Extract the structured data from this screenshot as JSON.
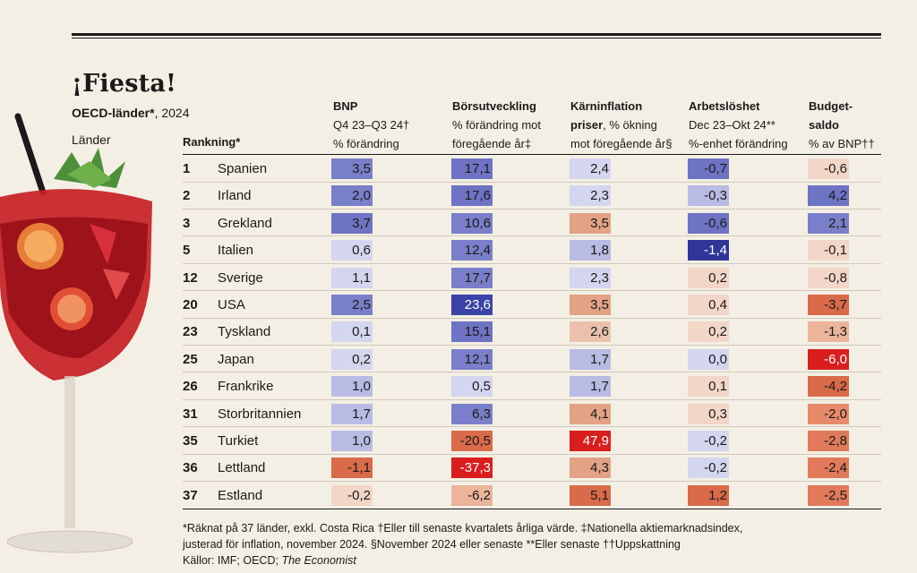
{
  "title": "¡Fiesta!",
  "subtitle_bold": "OECD-länder*",
  "subtitle_rest": ", 2024",
  "countries_label": "Länder",
  "rank_label": "Rankning*",
  "columns": [
    {
      "l1": "BNP",
      "l1_bold": true,
      "l2": "Q4 23–Q3 24†",
      "l2_bold": false,
      "l3": "% förändring"
    },
    {
      "l1": "Börsutveckling",
      "l1_bold": true,
      "l2": "% förändring mot",
      "l2_bold": false,
      "l3": "föregående år‡"
    },
    {
      "l1": "Kärninflation",
      "l1_bold": true,
      "l2": "priser",
      "l2_bold": true,
      "l2b": ", % ökning",
      "l3": "mot föregående år§"
    },
    {
      "l1": "Arbetslöshet",
      "l1_bold": true,
      "l2": "Dec 23–Okt 24**",
      "l2_bold": false,
      "l3": "%-enhet förändring"
    },
    {
      "l1": "Budget-",
      "l1_bold": true,
      "l2": "saldo",
      "l2_bold": true,
      "l3": "% av BNP††"
    }
  ],
  "chart_data": {
    "type": "table",
    "columns": [
      "BNP",
      "Börsutveckling",
      "Kärninflation priser",
      "Arbetslöshet",
      "Budgetsaldo"
    ],
    "rows": [
      {
        "rank": "1",
        "country": "Spanien",
        "values": [
          "3,5",
          "17,1",
          "2,4",
          "-0,7",
          "-0,6"
        ]
      },
      {
        "rank": "2",
        "country": "Irland",
        "values": [
          "2,0",
          "17,6",
          "2,3",
          "-0,3",
          "4,2"
        ]
      },
      {
        "rank": "3",
        "country": "Grekland",
        "values": [
          "3,7",
          "10,6",
          "3,5",
          "-0,6",
          "2,1"
        ]
      },
      {
        "rank": "5",
        "country": "Italien",
        "values": [
          "0,6",
          "12,4",
          "1,8",
          "-1,4",
          "-0,1"
        ]
      },
      {
        "rank": "12",
        "country": "Sverige",
        "values": [
          "1,1",
          "17,7",
          "2,3",
          "0,2",
          "-0,8"
        ]
      },
      {
        "rank": "20",
        "country": "USA",
        "values": [
          "2,5",
          "23,6",
          "3,5",
          "0,4",
          "-3,7"
        ]
      },
      {
        "rank": "23",
        "country": "Tyskland",
        "values": [
          "0,1",
          "15,1",
          "2,6",
          "0,2",
          "-1,3"
        ]
      },
      {
        "rank": "25",
        "country": "Japan",
        "values": [
          "0,2",
          "12,1",
          "1,7",
          "0,0",
          "-6,0"
        ]
      },
      {
        "rank": "26",
        "country": "Frankrike",
        "values": [
          "1,0",
          "0,5",
          "1,7",
          "0,1",
          "-4,2"
        ]
      },
      {
        "rank": "31",
        "country": "Storbritannien",
        "values": [
          "1,7",
          "6,3",
          "4,1",
          "0,3",
          "-2,0"
        ]
      },
      {
        "rank": "35",
        "country": "Turkiet",
        "values": [
          "1,0",
          "-20,5",
          "47,9",
          "-0,2",
          "-2,8"
        ]
      },
      {
        "rank": "36",
        "country": "Lettland",
        "values": [
          "-1,1",
          "-37,3",
          "4,3",
          "-0,2",
          "-2,4"
        ]
      },
      {
        "rank": "37",
        "country": "Estland",
        "values": [
          "-0,2",
          "-6,2",
          "5,1",
          "1,2",
          "-2,5"
        ]
      }
    ],
    "colors": [
      [
        "#7a7fc9",
        "#6f73c4",
        "#d4d5ee",
        "#6f73c4",
        "#f2d6c8"
      ],
      [
        "#7a7fc9",
        "#6f73c4",
        "#d4d5ee",
        "#b8bbe3",
        "#6f73c4"
      ],
      [
        "#6f73c4",
        "#7a7fc9",
        "#e3a285",
        "#6f73c4",
        "#7a7fc9"
      ],
      [
        "#d4d5ee",
        "#7a7fc9",
        "#b8bbe3",
        "#2f3698",
        "#f2d6c8"
      ],
      [
        "#d4d5ee",
        "#7a7fc9",
        "#d4d5ee",
        "#f2d6c8",
        "#f2d6c8"
      ],
      [
        "#7a7fc9",
        "#3c43a6",
        "#e3a285",
        "#f2d6c8",
        "#d96a4a"
      ],
      [
        "#d4d5ee",
        "#6f73c4",
        "#ebc1ae",
        "#f2d6c8",
        "#ebb49b"
      ],
      [
        "#d4d5ee",
        "#7a7fc9",
        "#b8bbe3",
        "#d4d5ee",
        "#d91e1e"
      ],
      [
        "#b8bbe3",
        "#d4d5ee",
        "#b8bbe3",
        "#f2d6c8",
        "#d96a4a"
      ],
      [
        "#b8bbe3",
        "#7a7fc9",
        "#e3a285",
        "#f2d6c8",
        "#e68a6a"
      ],
      [
        "#b8bbe3",
        "#d96a4a",
        "#d91e1e",
        "#d4d5ee",
        "#e07a5a"
      ],
      [
        "#d96a4a",
        "#d91e1e",
        "#e3a285",
        "#d4d5ee",
        "#e07a5a"
      ],
      [
        "#f2d6c8",
        "#ebb49b",
        "#d96a4a",
        "#d96a4a",
        "#e07a5a"
      ]
    ]
  },
  "notes": {
    "line1": "*Räknat på 37 länder, exkl. Costa Rica   †Eller till senaste kvartalets årliga värde.   ‡Nationella aktiemarknadsindex,",
    "line2": "justerad för inflation, november 2024.   §November 2024 eller senaste   **Eller senaste   ††Uppskattning",
    "line3_prefix": "Källor: IMF; OECD; ",
    "line3_italic": "The Economist"
  }
}
